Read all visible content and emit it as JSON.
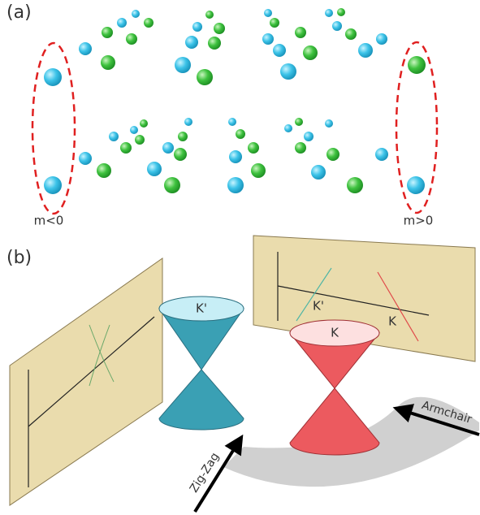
{
  "panel_a": {
    "label": "(a)",
    "left_label": "m<0",
    "right_label": "m>0"
  },
  "panel_b": {
    "label": "(b)",
    "cone_left_label": "K'",
    "cone_right_label": "K",
    "wall_right_labels": [
      "K'",
      "K"
    ],
    "arrow_zigzag": "Zig-Zag",
    "arrow_armchair": "Armchair"
  }
}
